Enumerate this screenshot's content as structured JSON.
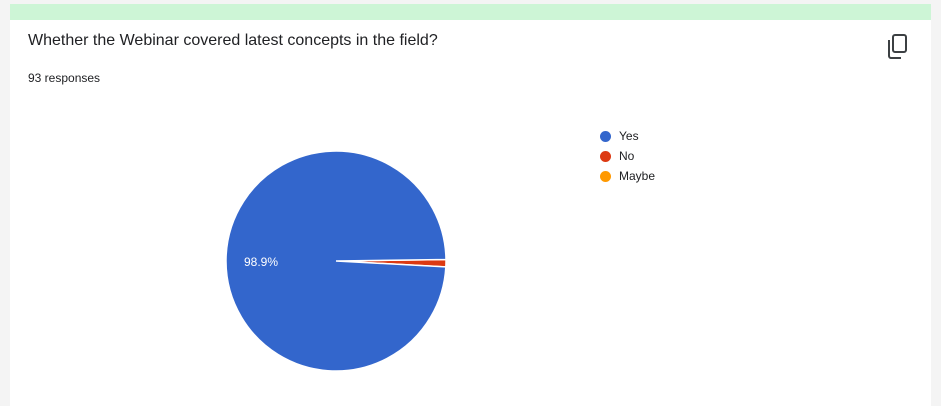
{
  "question": {
    "title": "Whether the Webinar covered latest concepts in the field?",
    "responses_text": "93 responses"
  },
  "icons": {
    "copy": "copy-icon"
  },
  "colors": {
    "yes": "#3366cc",
    "no": "#dc3912",
    "maybe": "#ff9900",
    "header_strip": "#cdf5d6"
  },
  "chart_data": {
    "type": "pie",
    "title": "Whether the Webinar covered latest concepts in the field?",
    "total": 93,
    "slices": [
      {
        "label": "Yes",
        "value": 92,
        "percent": 98.9,
        "percent_label": "98.9%",
        "color": "#3366cc"
      },
      {
        "label": "No",
        "value": 1,
        "percent": 1.1,
        "percent_label": "",
        "color": "#dc3912"
      },
      {
        "label": "Maybe",
        "value": 0,
        "percent": 0,
        "percent_label": "",
        "color": "#ff9900"
      }
    ],
    "legend_position": "right",
    "legend": [
      "Yes",
      "No",
      "Maybe"
    ]
  }
}
